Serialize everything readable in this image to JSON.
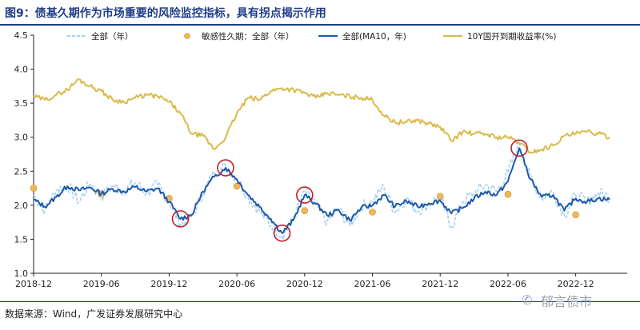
{
  "title": "图9：债基久期作为市场重要的风险监控指标，具有拐点揭示作用",
  "source": "数据来源：Wind，广发证券发展研究中心",
  "watermark": "郁言债市",
  "chart_data": {
    "type": "line",
    "title": "",
    "xlabel": "",
    "ylabel": "",
    "ylim": [
      1.0,
      4.5
    ],
    "yticks": [
      "1.0",
      "1.5",
      "2.0",
      "2.5",
      "3.0",
      "3.5",
      "4.0",
      "4.5"
    ],
    "x_start": "2018-12",
    "x_end": "2022-12",
    "xticks": [
      "2018-12",
      "2019-06",
      "2019-12",
      "2020-06",
      "2020-12",
      "2021-06",
      "2021-12",
      "2022-06",
      "2022-12"
    ],
    "legend_position": "top",
    "grid": false,
    "series": [
      {
        "name": "全部（年）",
        "style": "dashed",
        "color": "#a9d0ef",
        "points": [
          [
            "2018-12",
            2.15
          ],
          [
            "2019-01",
            1.92
          ],
          [
            "2019-02",
            2.22
          ],
          [
            "2019-03",
            2.3
          ],
          [
            "2019-04",
            2.05
          ],
          [
            "2019-05",
            2.32
          ],
          [
            "2019-06",
            2.12
          ],
          [
            "2019-07",
            2.28
          ],
          [
            "2019-08",
            2.22
          ],
          [
            "2019-09",
            2.33
          ],
          [
            "2019-10",
            2.18
          ],
          [
            "2019-11",
            2.3
          ],
          [
            "2019-12",
            2.05
          ],
          [
            "2020-01",
            1.72
          ],
          [
            "2020-02",
            1.82
          ],
          [
            "2020-03",
            2.18
          ],
          [
            "2020-04",
            2.48
          ],
          [
            "2020-05",
            2.58
          ],
          [
            "2020-06",
            2.4
          ],
          [
            "2020-07",
            2.12
          ],
          [
            "2020-08",
            1.92
          ],
          [
            "2020-09",
            1.7
          ],
          [
            "2020-10",
            1.55
          ],
          [
            "2020-11",
            1.78
          ],
          [
            "2020-12",
            2.22
          ],
          [
            "2021-01",
            2.0
          ],
          [
            "2021-02",
            1.75
          ],
          [
            "2021-03",
            1.95
          ],
          [
            "2021-04",
            1.7
          ],
          [
            "2021-05",
            1.98
          ],
          [
            "2021-06",
            2.05
          ],
          [
            "2021-07",
            2.28
          ],
          [
            "2021-08",
            1.9
          ],
          [
            "2021-09",
            2.1
          ],
          [
            "2021-10",
            1.92
          ],
          [
            "2021-11",
            2.02
          ],
          [
            "2021-12",
            2.12
          ],
          [
            "2022-01",
            1.68
          ],
          [
            "2022-02",
            2.05
          ],
          [
            "2022-03",
            2.18
          ],
          [
            "2022-04",
            2.3
          ],
          [
            "2022-05",
            2.2
          ],
          [
            "2022-06",
            2.48
          ],
          [
            "2022-07",
            2.92
          ],
          [
            "2022-08",
            2.4
          ],
          [
            "2022-09",
            2.1
          ],
          [
            "2022-10",
            2.2
          ],
          [
            "2022-11",
            1.85
          ],
          [
            "2022-12",
            2.15
          ],
          [
            "2023-01",
            2.05
          ],
          [
            "2023-02",
            2.18
          ],
          [
            "2023-03",
            2.12
          ]
        ]
      },
      {
        "name": "敏感性久期：全部（年）",
        "style": "marker",
        "color": "#f0b85a",
        "points": [
          [
            "2018-12",
            2.25
          ],
          [
            "2019-06",
            2.17
          ],
          [
            "2019-12",
            2.1
          ],
          [
            "2020-06",
            2.28
          ],
          [
            "2020-12",
            1.92
          ],
          [
            "2021-06",
            1.9
          ],
          [
            "2021-12",
            2.13
          ],
          [
            "2022-06",
            2.16
          ],
          [
            "2022-12",
            1.86
          ]
        ]
      },
      {
        "name": "全部(MA10，年)",
        "style": "solid",
        "color": "#1f5aa8",
        "points": [
          [
            "2018-12",
            2.08
          ],
          [
            "2019-01",
            1.98
          ],
          [
            "2019-02",
            2.12
          ],
          [
            "2019-03",
            2.28
          ],
          [
            "2019-04",
            2.22
          ],
          [
            "2019-05",
            2.26
          ],
          [
            "2019-06",
            2.17
          ],
          [
            "2019-07",
            2.24
          ],
          [
            "2019-08",
            2.2
          ],
          [
            "2019-09",
            2.27
          ],
          [
            "2019-10",
            2.2
          ],
          [
            "2019-11",
            2.25
          ],
          [
            "2019-12",
            2.05
          ],
          [
            "2020-01",
            1.8
          ],
          [
            "2020-02",
            1.86
          ],
          [
            "2020-03",
            2.2
          ],
          [
            "2020-04",
            2.42
          ],
          [
            "2020-05",
            2.55
          ],
          [
            "2020-06",
            2.38
          ],
          [
            "2020-07",
            2.15
          ],
          [
            "2020-08",
            1.98
          ],
          [
            "2020-09",
            1.8
          ],
          [
            "2020-10",
            1.59
          ],
          [
            "2020-11",
            1.78
          ],
          [
            "2020-12",
            2.15
          ],
          [
            "2021-01",
            2.02
          ],
          [
            "2021-02",
            1.85
          ],
          [
            "2021-03",
            1.93
          ],
          [
            "2021-04",
            1.78
          ],
          [
            "2021-05",
            1.96
          ],
          [
            "2021-06",
            2.0
          ],
          [
            "2021-07",
            2.15
          ],
          [
            "2021-08",
            1.98
          ],
          [
            "2021-09",
            2.06
          ],
          [
            "2021-10",
            1.98
          ],
          [
            "2021-11",
            2.03
          ],
          [
            "2021-12",
            2.07
          ],
          [
            "2022-01",
            1.88
          ],
          [
            "2022-02",
            1.96
          ],
          [
            "2022-03",
            2.1
          ],
          [
            "2022-04",
            2.2
          ],
          [
            "2022-05",
            2.15
          ],
          [
            "2022-06",
            2.35
          ],
          [
            "2022-07",
            2.84
          ],
          [
            "2022-08",
            2.38
          ],
          [
            "2022-09",
            2.12
          ],
          [
            "2022-10",
            2.15
          ],
          [
            "2022-11",
            1.92
          ],
          [
            "2022-12",
            2.1
          ],
          [
            "2023-01",
            2.05
          ],
          [
            "2023-02",
            2.1
          ],
          [
            "2023-03",
            2.08
          ]
        ]
      },
      {
        "name": "10Y国开到期收益率(%)",
        "style": "solid",
        "color": "#d9bb4a",
        "points": [
          [
            "2018-12",
            3.6
          ],
          [
            "2019-01",
            3.55
          ],
          [
            "2019-02",
            3.62
          ],
          [
            "2019-03",
            3.7
          ],
          [
            "2019-04",
            3.85
          ],
          [
            "2019-05",
            3.75
          ],
          [
            "2019-06",
            3.68
          ],
          [
            "2019-07",
            3.55
          ],
          [
            "2019-08",
            3.52
          ],
          [
            "2019-09",
            3.58
          ],
          [
            "2019-10",
            3.62
          ],
          [
            "2019-11",
            3.6
          ],
          [
            "2019-12",
            3.52
          ],
          [
            "2020-01",
            3.35
          ],
          [
            "2020-02",
            3.05
          ],
          [
            "2020-03",
            3.02
          ],
          [
            "2020-04",
            2.82
          ],
          [
            "2020-05",
            3.0
          ],
          [
            "2020-06",
            3.35
          ],
          [
            "2020-07",
            3.58
          ],
          [
            "2020-08",
            3.55
          ],
          [
            "2020-09",
            3.68
          ],
          [
            "2020-10",
            3.72
          ],
          [
            "2020-11",
            3.7
          ],
          [
            "2020-12",
            3.65
          ],
          [
            "2021-01",
            3.58
          ],
          [
            "2021-02",
            3.65
          ],
          [
            "2021-03",
            3.62
          ],
          [
            "2021-04",
            3.6
          ],
          [
            "2021-05",
            3.58
          ],
          [
            "2021-06",
            3.55
          ],
          [
            "2021-07",
            3.32
          ],
          [
            "2021-08",
            3.22
          ],
          [
            "2021-09",
            3.22
          ],
          [
            "2021-10",
            3.25
          ],
          [
            "2021-11",
            3.2
          ],
          [
            "2021-12",
            3.15
          ],
          [
            "2022-01",
            2.95
          ],
          [
            "2022-02",
            3.08
          ],
          [
            "2022-03",
            3.05
          ],
          [
            "2022-04",
            3.05
          ],
          [
            "2022-05",
            3.0
          ],
          [
            "2022-06",
            3.0
          ],
          [
            "2022-07",
            2.92
          ],
          [
            "2022-08",
            2.78
          ],
          [
            "2022-09",
            2.82
          ],
          [
            "2022-10",
            2.88
          ],
          [
            "2022-11",
            3.02
          ],
          [
            "2022-12",
            3.05
          ],
          [
            "2023-01",
            3.08
          ],
          [
            "2023-02",
            3.05
          ],
          [
            "2023-03",
            3.0
          ]
        ]
      }
    ],
    "annotations": {
      "type": "circle",
      "color": "#c0202a",
      "points": [
        [
          "2020-05",
          2.55
        ],
        [
          "2020-01",
          1.8
        ],
        [
          "2020-10",
          1.59
        ],
        [
          "2020-12",
          2.15
        ],
        [
          "2022-07",
          2.84
        ]
      ]
    }
  }
}
